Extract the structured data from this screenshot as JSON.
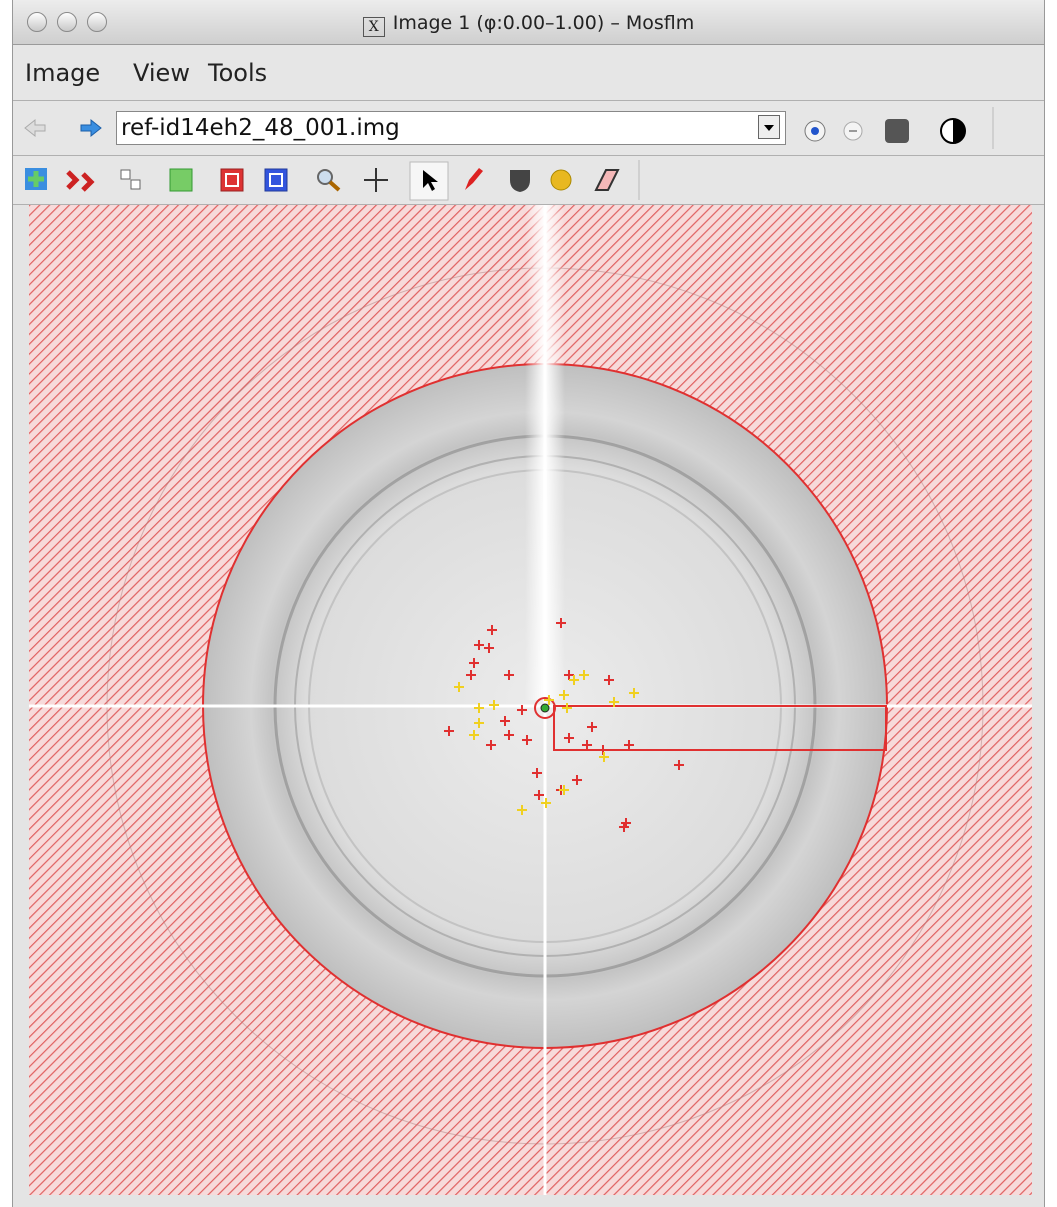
{
  "window": {
    "title": "Image 1 (φ:0.00–1.00) – Mosflm"
  },
  "menu": [
    "Image",
    "View",
    "Tools"
  ],
  "toolbar": {
    "filename": "ref-id14eh2_48_001.img"
  }
}
